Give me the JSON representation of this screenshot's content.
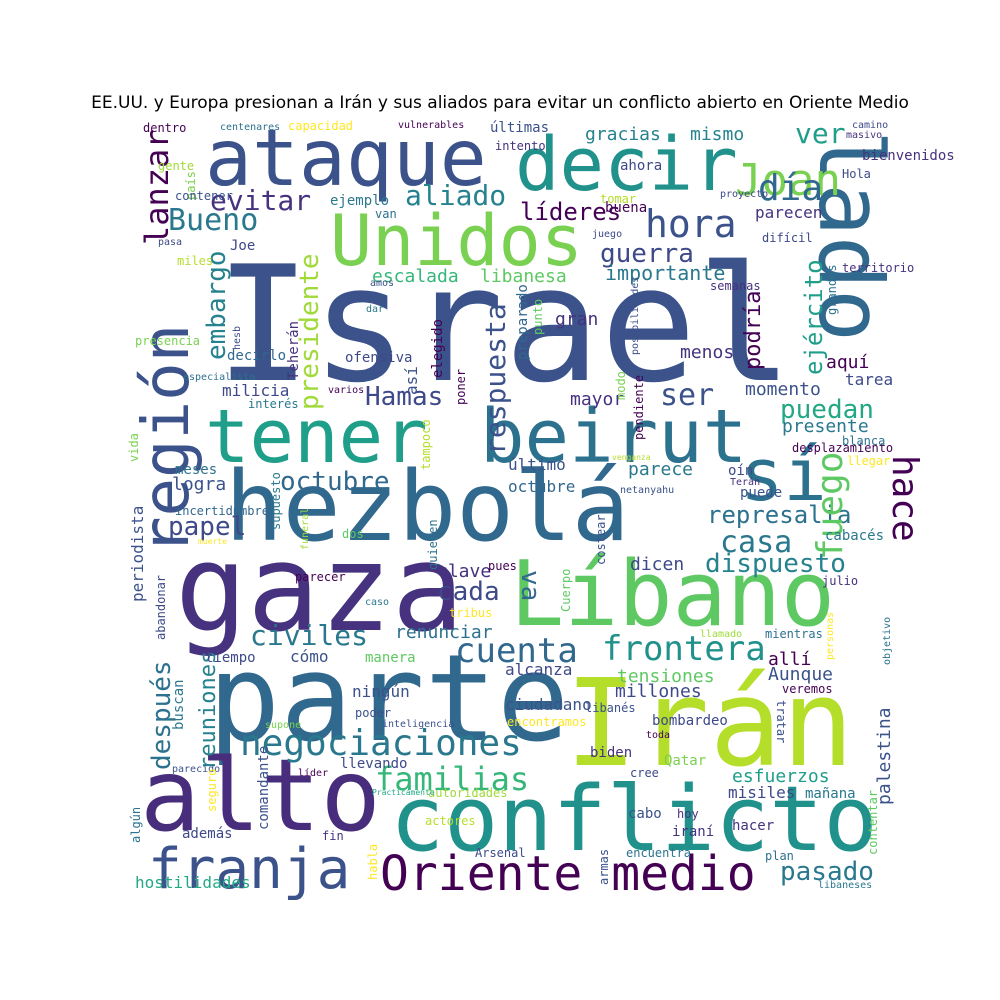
{
  "title": "EE.UU. y Europa presionan a Irán y sus aliados para evitar un conflicto abierto en Oriente Medio",
  "words": [
    {
      "text": "Israel",
      "color": "#3b528b"
    },
    {
      "text": "ataque",
      "color": "#3b528b"
    },
    {
      "text": "decir",
      "color": "#21918c"
    },
    {
      "text": "Unidos",
      "color": "#7ad151"
    },
    {
      "text": "lado",
      "color": "#31688e"
    },
    {
      "text": "tener",
      "color": "#1f9e89"
    },
    {
      "text": "beirut",
      "color": "#2c728e"
    },
    {
      "text": "sí",
      "color": "#2c728e"
    },
    {
      "text": "región",
      "color": "#3b528b"
    },
    {
      "text": "hezbolá",
      "color": "#31688e"
    },
    {
      "text": "gaza",
      "color": "#46327e"
    },
    {
      "text": "Líbano",
      "color": "#5ec962"
    },
    {
      "text": "parte",
      "color": "#31688e"
    },
    {
      "text": "Irán",
      "color": "#b5de2b"
    },
    {
      "text": "alto",
      "color": "#472d7b"
    },
    {
      "text": "conflicto",
      "color": "#21918c"
    },
    {
      "text": "franja",
      "color": "#3b528b"
    },
    {
      "text": "Oriente medio",
      "color": "#440154"
    },
    {
      "text": "negociaciones",
      "color": "#2a788e"
    },
    {
      "text": "familias",
      "color": "#35b779"
    },
    {
      "text": "Joan",
      "color": "#7ad151"
    },
    {
      "text": "día",
      "color": "#31688e"
    },
    {
      "text": "hora",
      "color": "#3b528b"
    },
    {
      "text": "ver",
      "color": "#1f9e89"
    },
    {
      "text": "lanzar",
      "color": "#440154"
    },
    {
      "text": "Bueno",
      "color": "#2a788e"
    },
    {
      "text": "evitar",
      "color": "#46327e"
    },
    {
      "text": "aliado",
      "color": "#26828e"
    },
    {
      "text": "líderes",
      "color": "#440154"
    },
    {
      "text": "guerra",
      "color": "#3e4989"
    },
    {
      "text": "importante",
      "color": "#2a788e"
    },
    {
      "text": "embargo",
      "color": "#26828e"
    },
    {
      "text": "presidente",
      "color": "#a0da39"
    },
    {
      "text": "escalada",
      "color": "#35b779"
    },
    {
      "text": "libanesa",
      "color": "#5ec962"
    },
    {
      "text": "respuesta",
      "color": "#3b528b"
    },
    {
      "text": "Hamas",
      "color": "#3e4989"
    },
    {
      "text": "ser",
      "color": "#3b528b"
    },
    {
      "text": "puedan",
      "color": "#22a884"
    },
    {
      "text": "presente",
      "color": "#2a788e"
    },
    {
      "text": "ejército",
      "color": "#1f9e89"
    },
    {
      "text": "podría",
      "color": "#440154"
    },
    {
      "text": "menos",
      "color": "#46327e"
    },
    {
      "text": "momento",
      "color": "#3b528b"
    },
    {
      "text": "aquí",
      "color": "#440154"
    },
    {
      "text": "tarea",
      "color": "#3e4989"
    },
    {
      "text": "octubre",
      "color": "#31688e"
    },
    {
      "text": "hace",
      "color": "#440154"
    },
    {
      "text": "represalia",
      "color": "#2c728e"
    },
    {
      "text": "casa",
      "color": "#2a788e"
    },
    {
      "text": "dispuesto",
      "color": "#26828e"
    },
    {
      "text": "papel",
      "color": "#3e4989"
    },
    {
      "text": "cada",
      "color": "#3e4989"
    },
    {
      "text": "va",
      "color": "#31688e"
    },
    {
      "text": "fuego",
      "color": "#5ec962"
    },
    {
      "text": "frontera",
      "color": "#21918c"
    },
    {
      "text": "cuenta",
      "color": "#31688e"
    },
    {
      "text": "civiles",
      "color": "#2a788e"
    },
    {
      "text": "renunciar",
      "color": "#2c728e"
    },
    {
      "text": "después",
      "color": "#2c728e"
    },
    {
      "text": "reuniones",
      "color": "#26828e"
    },
    {
      "text": "tensiones",
      "color": "#5ec962"
    },
    {
      "text": "millones",
      "color": "#3e4989"
    },
    {
      "text": "Aunque",
      "color": "#3b528b"
    },
    {
      "text": "allí",
      "color": "#440154"
    },
    {
      "text": "pasado",
      "color": "#2a788e"
    },
    {
      "text": "esfuerzos",
      "color": "#1f9e89"
    },
    {
      "text": "misiles",
      "color": "#3e4989"
    },
    {
      "text": "mañana",
      "color": "#2a788e"
    },
    {
      "text": "palestina",
      "color": "#3b528b"
    },
    {
      "text": "hostilidades",
      "color": "#22a884"
    },
    {
      "text": "gracias",
      "color": "#26828e"
    },
    {
      "text": "mismo",
      "color": "#26828e"
    },
    {
      "text": "últimas",
      "color": "#3b528b"
    },
    {
      "text": "parecen",
      "color": "#46327e"
    },
    {
      "text": "buena",
      "color": "#440154"
    },
    {
      "text": "octubre",
      "color": "#31688e"
    },
    {
      "text": "último",
      "color": "#3b528b"
    },
    {
      "text": "parece",
      "color": "#2a788e"
    },
    {
      "text": "oín",
      "color": "#3e4989"
    },
    {
      "text": "puede",
      "color": "#3b528b"
    },
    {
      "text": "logra",
      "color": "#3b528b"
    },
    {
      "text": "meses",
      "color": "#2c728e"
    },
    {
      "text": "milicia",
      "color": "#3e4989"
    },
    {
      "text": "interés",
      "color": "#2a788e"
    },
    {
      "text": "mayor",
      "color": "#46327e"
    },
    {
      "text": "gran",
      "color": "#46327e"
    },
    {
      "text": "así",
      "color": "#3b528b"
    },
    {
      "text": "ofensiva",
      "color": "#3e4989"
    },
    {
      "text": "Teherán",
      "color": "#46327e"
    },
    {
      "text": "decirlo",
      "color": "#31688e"
    },
    {
      "text": "Joe",
      "color": "#3e4989"
    },
    {
      "text": "ejemplo",
      "color": "#2a788e"
    },
    {
      "text": "van",
      "color": "#2c728e"
    },
    {
      "text": "alcanza",
      "color": "#3e4989"
    },
    {
      "text": "ciudadano",
      "color": "#3b528b"
    },
    {
      "text": "ningún",
      "color": "#3b528b"
    },
    {
      "text": "poder",
      "color": "#3b528b"
    },
    {
      "text": "cómo",
      "color": "#3b528b"
    },
    {
      "text": "manera",
      "color": "#5ec962"
    },
    {
      "text": "clave",
      "color": "#46327e"
    },
    {
      "text": "dicen",
      "color": "#3e4989"
    },
    {
      "text": "tiempo",
      "color": "#3e4989"
    },
    {
      "text": "llevando",
      "color": "#3e4989"
    },
    {
      "text": "líder",
      "color": "#440154"
    },
    {
      "text": "además",
      "color": "#3e4989"
    },
    {
      "text": "comandante",
      "color": "#3b528b"
    },
    {
      "text": "buscan",
      "color": "#2a788e"
    },
    {
      "text": "periodista",
      "color": "#3b528b"
    },
    {
      "text": "abandonar",
      "color": "#3e4989"
    },
    {
      "text": "incertidumbre",
      "color": "#31688e"
    },
    {
      "text": "cabacés",
      "color": "#2a788e"
    },
    {
      "text": "julio",
      "color": "#46327e"
    },
    {
      "text": "mientras",
      "color": "#2c728e"
    },
    {
      "text": "veremos",
      "color": "#440154"
    },
    {
      "text": "tratar",
      "color": "#3b528b"
    },
    {
      "text": "bombardeo",
      "color": "#3e4989"
    },
    {
      "text": "Qatar",
      "color": "#7ad151"
    },
    {
      "text": "biden",
      "color": "#46327e"
    },
    {
      "text": "cree",
      "color": "#3e4989"
    },
    {
      "text": "contentar",
      "color": "#5ec962"
    },
    {
      "text": "hacer",
      "color": "#46327e"
    },
    {
      "text": "iraní",
      "color": "#46327e"
    },
    {
      "text": "cabo",
      "color": "#3b528b"
    },
    {
      "text": "hoy",
      "color": "#46327e"
    },
    {
      "text": "plan",
      "color": "#2c728e"
    },
    {
      "text": "encuentra",
      "color": "#2c728e"
    },
    {
      "text": "Arsenal",
      "color": "#3e4989"
    },
    {
      "text": "armas",
      "color": "#3b528b"
    },
    {
      "text": "actores",
      "color": "#b5de2b"
    },
    {
      "text": "fin",
      "color": "#46327e"
    },
    {
      "text": "habla",
      "color": "#fde725"
    },
    {
      "text": "autoridades",
      "color": "#a0da39"
    },
    {
      "text": "Prácticamente",
      "color": "#22a884"
    },
    {
      "text": "bienvenidos",
      "color": "#46327e"
    },
    {
      "text": "Hola",
      "color": "#3e4989"
    },
    {
      "text": "camino",
      "color": "#3e4989"
    },
    {
      "text": "masivo",
      "color": "#46327e"
    },
    {
      "text": "grandes",
      "color": "#2c728e"
    },
    {
      "text": "territorio",
      "color": "#46327e"
    },
    {
      "text": "semanas",
      "color": "#46327e"
    },
    {
      "text": "difícil",
      "color": "#3e4989"
    },
    {
      "text": "juego",
      "color": "#3e4989"
    },
    {
      "text": "proyecto",
      "color": "#3e4989"
    },
    {
      "text": "ahora",
      "color": "#3e4989"
    },
    {
      "text": "tomar",
      "color": "#b5de2b"
    },
    {
      "text": "intento",
      "color": "#46327e"
    },
    {
      "text": "vulnerables",
      "color": "#440154"
    },
    {
      "text": "capacidad",
      "color": "#fde725"
    },
    {
      "text": "centenares",
      "color": "#2c728e"
    },
    {
      "text": "dentro",
      "color": "#440154"
    },
    {
      "text": "gente",
      "color": "#a0da39"
    },
    {
      "text": "país",
      "color": "#7ad151"
    },
    {
      "text": "contener",
      "color": "#3b528b"
    },
    {
      "text": "pasa",
      "color": "#3e4989"
    },
    {
      "text": "miles",
      "color": "#b5de2b"
    },
    {
      "text": "hesb",
      "color": "#3e4989"
    },
    {
      "text": "presencia",
      "color": "#7ad151"
    },
    {
      "text": "vida",
      "color": "#7ad151"
    },
    {
      "text": "especialista",
      "color": "#2c728e"
    },
    {
      "text": "varios",
      "color": "#440154"
    },
    {
      "text": "amos",
      "color": "#3b528b"
    },
    {
      "text": "dar",
      "color": "#2a788e"
    },
    {
      "text": "poner",
      "color": "#440154"
    },
    {
      "text": "elegido",
      "color": "#440154"
    },
    {
      "text": "preparado",
      "color": "#31688e"
    },
    {
      "text": "punto",
      "color": "#5ec962"
    },
    {
      "text": "modo",
      "color": "#7ad151"
    },
    {
      "text": "posibilidades",
      "color": "#3b528b"
    },
    {
      "text": "pendiente",
      "color": "#440154"
    },
    {
      "text": "tampoco",
      "color": "#b5de2b"
    },
    {
      "text": "venganza",
      "color": "#b5de2b"
    },
    {
      "text": "desplazamiento",
      "color": "#440154"
    },
    {
      "text": "blanca",
      "color": "#2c728e"
    },
    {
      "text": "llegar",
      "color": "#fde725"
    },
    {
      "text": "Terán",
      "color": "#46327e"
    },
    {
      "text": "netanyahu",
      "color": "#3b528b"
    },
    {
      "text": "costear",
      "color": "#3b528b"
    },
    {
      "text": "quieren",
      "color": "#2c728e"
    },
    {
      "text": "funeral",
      "color": "#a0da39"
    },
    {
      "text": "supuesto",
      "color": "#2a788e"
    },
    {
      "text": "dos",
      "color": "#5ec962"
    },
    {
      "text": "muerte",
      "color": "#fde725"
    },
    {
      "text": "parecer",
      "color": "#440154"
    },
    {
      "text": "pues",
      "color": "#440154"
    },
    {
      "text": "Cuerpo",
      "color": "#5ec962"
    },
    {
      "text": "caso",
      "color": "#2a788e"
    },
    {
      "text": "tribus",
      "color": "#fde725"
    },
    {
      "text": "llamado",
      "color": "#a0da39"
    },
    {
      "text": "personas",
      "color": "#fde725"
    },
    {
      "text": "objetivo",
      "color": "#2c728e"
    },
    {
      "text": "inteligencia",
      "color": "#3b528b"
    },
    {
      "text": "supone",
      "color": "#7ad151"
    },
    {
      "text": "encontramos",
      "color": "#fde725"
    },
    {
      "text": "libanés",
      "color": "#3b528b"
    },
    {
      "text": "toda",
      "color": "#440154"
    },
    {
      "text": "parecido",
      "color": "#3b528b"
    },
    {
      "text": "seguro",
      "color": "#fde725"
    },
    {
      "text": "algún",
      "color": "#2c728e"
    },
    {
      "text": "libaneses",
      "color": "#2a788e"
    },
    {
      "text": "avanzado",
      "color": "#440154"
    }
  ]
}
